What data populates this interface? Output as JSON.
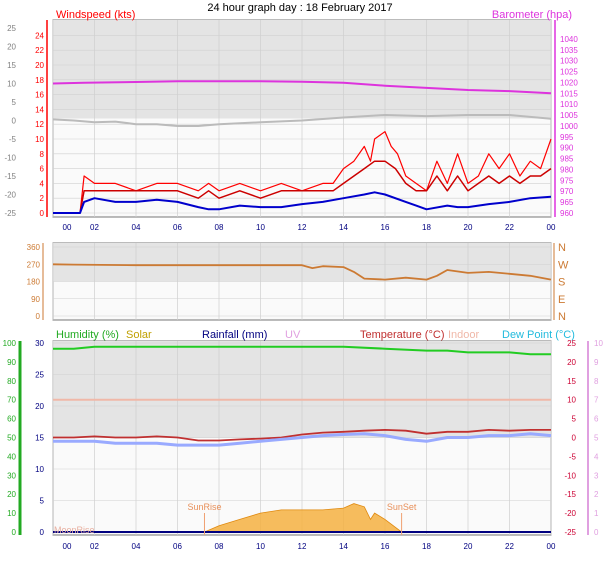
{
  "title": "24 hour graph day : 18 February 2017",
  "colors": {
    "wind": "#ff0000",
    "gust_dark": "#cc0000",
    "avg": "#0000cc",
    "baro": "#dd33dd",
    "temp_bg": "#bbbbbb",
    "dir": "#cc7a33",
    "humidity": "#22cc22",
    "solar": "#f5b041",
    "rain": "#000080",
    "uv": "#e0a0e0",
    "temperature": "#c03030",
    "indoor": "#f0b8a8",
    "dewpoint": "#99aaff",
    "dewpoint_label": "#22bbdd",
    "humidity_axis": "#22aa22",
    "temp_axis": "#cc0033"
  },
  "x_ticks": [
    "00",
    "02",
    "04",
    "06",
    "08",
    "10",
    "12",
    "14",
    "16",
    "18",
    "20",
    "22",
    "00"
  ],
  "chart_data": [
    {
      "type": "line",
      "panel": "wind",
      "left_label": "Windspeed (kts)",
      "right_label": "Barometer (hpa)",
      "left_axis_ticks": [
        "24",
        "22",
        "20",
        "18",
        "16",
        "14",
        "12",
        "10",
        "8",
        "6",
        "4",
        "2",
        "0"
      ],
      "outer_axis_ticks": [
        "25",
        "20",
        "15",
        "10",
        "5",
        "0",
        "-5",
        "-10",
        "-15",
        "-20",
        "-25"
      ],
      "right_axis_ticks": [
        "1040",
        "1035",
        "1030",
        "1025",
        "1020",
        "1015",
        "1010",
        "1005",
        "1000",
        "995",
        "990",
        "985",
        "980",
        "975",
        "970",
        "965",
        "960"
      ],
      "ylim_wind": [
        0,
        25
      ],
      "ylim_baro": [
        960,
        1045
      ],
      "series": [
        {
          "key": "gust",
          "x": [
            0,
            1.3,
            1.5,
            2,
            3,
            4,
            5,
            6,
            7,
            7.5,
            8,
            9,
            10,
            11,
            12,
            13,
            13.5,
            14,
            14.5,
            15,
            15.3,
            15.5,
            16,
            16.3,
            16.6,
            17,
            17.5,
            18,
            18.5,
            19,
            19.5,
            20,
            20.5,
            21,
            21.5,
            22,
            22.5,
            23,
            23.5,
            24
          ],
          "y": [
            0,
            0,
            5,
            4,
            4,
            3,
            4,
            4,
            3,
            4,
            3,
            4,
            3,
            4,
            3,
            4,
            4,
            6,
            7,
            9,
            7,
            10,
            11,
            9,
            8,
            5,
            4,
            3,
            7,
            4,
            8,
            4,
            5,
            8,
            6,
            8,
            5,
            7,
            6,
            10
          ]
        },
        {
          "key": "wind",
          "x": [
            0,
            1.3,
            1.5,
            2,
            3,
            4,
            5,
            6,
            7,
            7.5,
            8,
            9,
            10,
            11,
            12,
            13,
            13.5,
            14,
            14.5,
            15,
            15.5,
            16,
            16.5,
            17,
            17.5,
            18,
            18.5,
            19,
            19.5,
            20,
            20.5,
            21,
            21.5,
            22,
            22.5,
            23,
            23.5,
            24
          ],
          "y": [
            0,
            0,
            3,
            3,
            3,
            3,
            3,
            3,
            2,
            3,
            2,
            3,
            2,
            3,
            3,
            3,
            3,
            4,
            5,
            6,
            7,
            7,
            6,
            4,
            3,
            3,
            5,
            3,
            5,
            3,
            4,
            5,
            4,
            5,
            4,
            5,
            5,
            6
          ]
        },
        {
          "key": "avg",
          "x": [
            0,
            1.3,
            1.5,
            2,
            3,
            4,
            5,
            6,
            7,
            7.5,
            8,
            9,
            10,
            11,
            12,
            13,
            14,
            15,
            15.5,
            16,
            17,
            17.5,
            18,
            19,
            19.5,
            20,
            21,
            22,
            23,
            24
          ],
          "y": [
            0,
            0,
            1.5,
            2,
            1.5,
            1.5,
            1.8,
            1.5,
            0.8,
            0.5,
            0.5,
            1,
            0.8,
            0.8,
            1.2,
            1.5,
            2,
            2.5,
            2.8,
            2.5,
            1.5,
            1,
            0.5,
            1,
            0.8,
            0.8,
            1.2,
            1.5,
            2,
            2.2
          ]
        },
        {
          "key": "baro",
          "x": [
            0,
            1.5,
            4,
            6,
            8,
            10,
            12,
            14,
            16,
            18,
            20,
            22,
            24
          ],
          "y": [
            1019.5,
            1019.8,
            1020.2,
            1020.5,
            1020.5,
            1020.5,
            1020.3,
            1019.8,
            1018.5,
            1017.5,
            1016.5,
            1016,
            1015
          ]
        },
        {
          "key": "outer_temp",
          "x": [
            0,
            1,
            2,
            3,
            4,
            5,
            6,
            7,
            8,
            10,
            12,
            14,
            16,
            18,
            20,
            22,
            24
          ],
          "y": [
            0.3,
            0,
            -0.5,
            -0.3,
            -1,
            -1,
            -1.5,
            -1.5,
            -1,
            -0.5,
            0,
            0.8,
            1.5,
            1.2,
            1.5,
            1.5,
            0.5
          ]
        }
      ]
    },
    {
      "type": "line",
      "panel": "direction",
      "left_axis_ticks": [
        "360",
        "270",
        "180",
        "90",
        "0"
      ],
      "right_axis_ticks": [
        "N",
        "W",
        "S",
        "E",
        "N"
      ],
      "ylim": [
        0,
        360
      ],
      "series": [
        {
          "key": "dir",
          "x": [
            0,
            1,
            4,
            8,
            12,
            12.5,
            13,
            14,
            14.5,
            15,
            16,
            17,
            18,
            18.5,
            19,
            20,
            21,
            22,
            23,
            24
          ],
          "y": [
            270,
            268,
            265,
            265,
            265,
            250,
            260,
            255,
            230,
            195,
            190,
            200,
            190,
            210,
            240,
            225,
            230,
            220,
            210,
            190
          ]
        }
      ]
    },
    {
      "type": "line",
      "panel": "climate",
      "legend": [
        "Humidity (%)",
        "Solar",
        "Rainfall (mm)",
        "UV",
        "Temperature (°C)",
        "Indoor",
        "Dew Point (°C)"
      ],
      "humidity_axis_ticks": [
        "100",
        "90",
        "80",
        "70",
        "60",
        "50",
        "40",
        "30",
        "20",
        "10",
        "0"
      ],
      "solar_axis_ticks": [
        "30",
        "25",
        "20",
        "15",
        "10",
        "5",
        "0"
      ],
      "temp_axis_ticks": [
        "25",
        "20",
        "15",
        "10",
        "5",
        "0",
        "-5",
        "-10",
        "-15",
        "-20",
        "-25"
      ],
      "uv_axis_ticks": [
        "10",
        "9",
        "8",
        "7",
        "6",
        "5",
        "4",
        "3",
        "2",
        "1",
        "0"
      ],
      "ylim_temp": [
        -25,
        25
      ],
      "ylim_humidity": [
        0,
        100
      ],
      "ylim_solar": [
        0,
        30
      ],
      "annotations": [
        {
          "label": "SunRise",
          "x": 7.3
        },
        {
          "label": "SunSet",
          "x": 16.8
        },
        {
          "label": "MoonRise",
          "x": 0.5
        }
      ],
      "series": [
        {
          "key": "humidity",
          "x": [
            0,
            1,
            2,
            3,
            4,
            5,
            6,
            7,
            8,
            10,
            12,
            14,
            16,
            18,
            19,
            20,
            21,
            22,
            23,
            24
          ],
          "y": [
            97,
            97,
            98,
            98,
            98,
            98,
            98,
            98,
            98,
            98,
            98,
            98,
            97,
            96,
            96,
            95,
            95,
            95,
            94,
            94
          ]
        },
        {
          "key": "indoor",
          "x": [
            0,
            4,
            8,
            12,
            16,
            20,
            24
          ],
          "y": [
            10,
            10,
            10,
            10,
            10,
            10,
            10
          ]
        },
        {
          "key": "temperature",
          "x": [
            0,
            1,
            2,
            3,
            4,
            5,
            6,
            7,
            8,
            9,
            10,
            11,
            12,
            13,
            14,
            15,
            16,
            17,
            18,
            19,
            20,
            21,
            22,
            23,
            24
          ],
          "y": [
            0,
            0,
            0.3,
            0,
            0,
            0.3,
            0,
            -0.8,
            -0.8,
            -0.5,
            -0.3,
            0,
            0.8,
            1.3,
            1.5,
            1.8,
            2,
            1.8,
            1,
            1.5,
            1.5,
            2,
            1.8,
            2,
            2
          ]
        },
        {
          "key": "dewpoint",
          "x": [
            0,
            1,
            2,
            3,
            4,
            5,
            6,
            7,
            8,
            9,
            10,
            11,
            12,
            13,
            14,
            15,
            16,
            17,
            18,
            19,
            20,
            21,
            22,
            23,
            24
          ],
          "y": [
            -1,
            -1,
            -1,
            -1.5,
            -1.5,
            -1.5,
            -2,
            -2,
            -2,
            -1.5,
            -1,
            -0.5,
            0,
            0.5,
            0.8,
            1,
            0.5,
            -0.5,
            -1,
            0,
            0,
            0.5,
            0.5,
            1,
            0.5
          ]
        },
        {
          "key": "rain",
          "x": [
            0,
            24
          ],
          "y": [
            0,
            0
          ]
        },
        {
          "key": "solar",
          "x": [
            7.3,
            8,
            9,
            10,
            11,
            12,
            13,
            14,
            14.5,
            15,
            15.3,
            15.5,
            16,
            16.8
          ],
          "y": [
            0,
            1,
            2,
            3,
            3.5,
            3.5,
            3.5,
            3.8,
            4.5,
            4,
            2,
            3,
            2,
            0
          ]
        }
      ]
    }
  ]
}
